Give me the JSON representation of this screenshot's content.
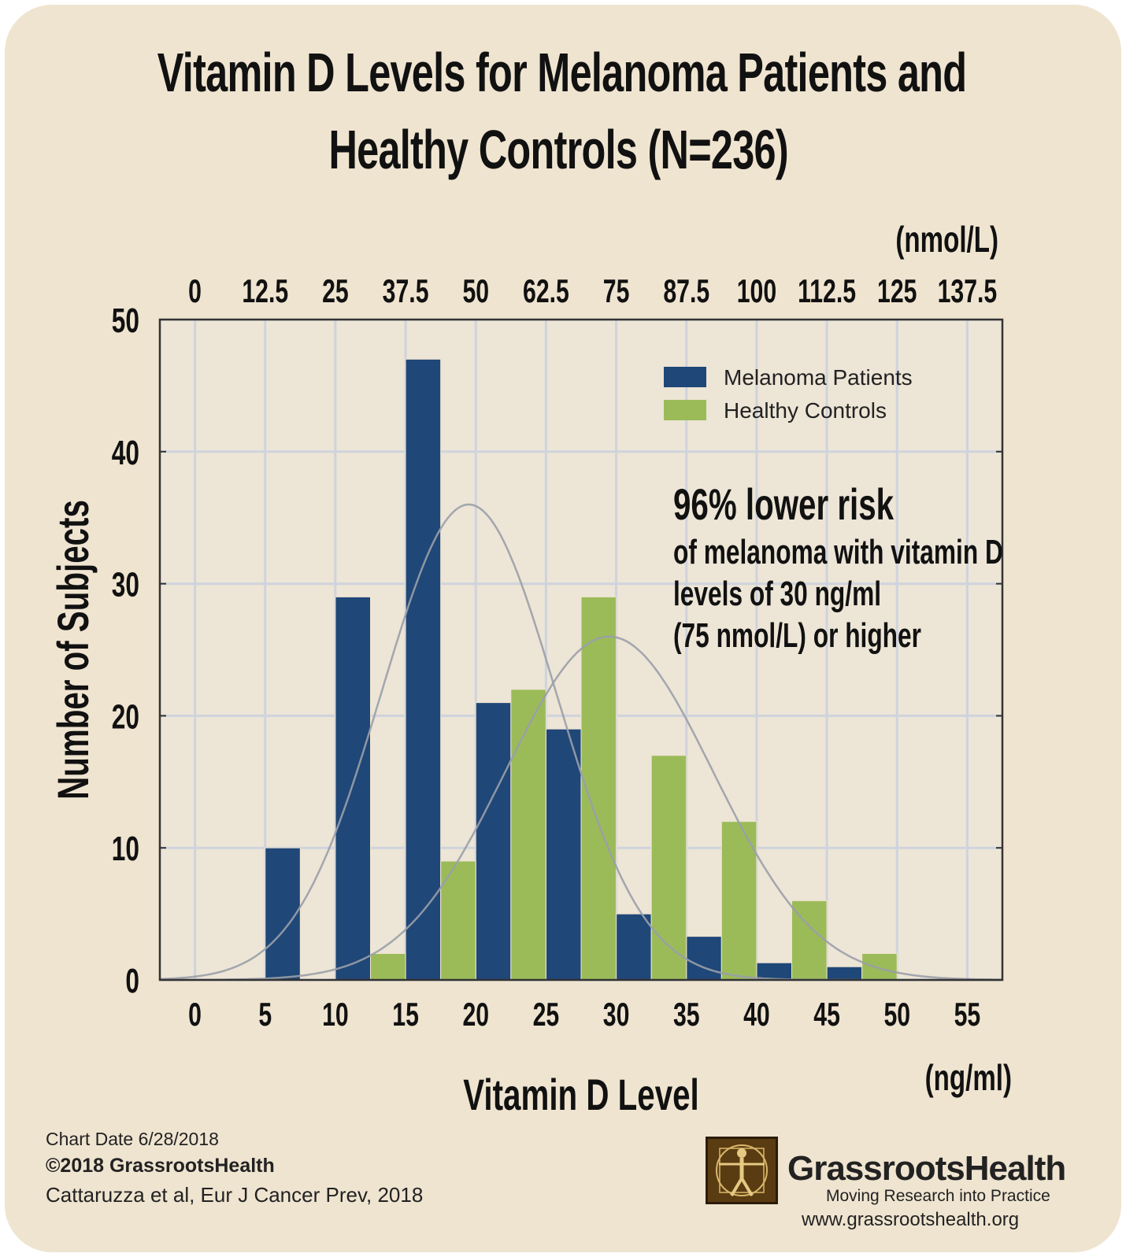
{
  "title_line1": "Vitamin D Levels for Melanoma Patients and",
  "title_line2": "Healthy Controls (N=236)",
  "chart_data": {
    "type": "bar",
    "title": "Vitamin D Levels for Melanoma Patients and Healthy Controls (N=236)",
    "xlabel": "Vitamin D Level",
    "x_unit": "(ng/ml)",
    "x2_unit": "(nmol/L)",
    "ylabel": "Number of Subjects",
    "x_ticks": [
      0,
      5,
      10,
      15,
      20,
      25,
      30,
      35,
      40,
      45,
      50,
      55
    ],
    "x2_ticks": [
      "0",
      "12.5",
      "25",
      "37.5",
      "50",
      "62.5",
      "75",
      "87.5",
      "100",
      "112.5",
      "125",
      "137.5"
    ],
    "y_ticks": [
      0,
      10,
      20,
      30,
      40,
      50
    ],
    "xlim": [
      -2.5,
      57.5
    ],
    "ylim": [
      0,
      50
    ],
    "grid": true,
    "legend_position": "top-right",
    "bin_edges": [
      5,
      10,
      15,
      20,
      25,
      30,
      35,
      40,
      45,
      50
    ],
    "series": [
      {
        "name": "Melanoma Patients",
        "color": "#1f4778",
        "bins": [
          [
            5,
            10
          ],
          [
            10,
            15
          ],
          [
            15,
            20
          ],
          [
            20,
            25
          ],
          [
            25,
            30
          ],
          [
            30,
            35
          ],
          [
            35,
            40
          ],
          [
            40,
            45
          ],
          [
            45,
            50
          ]
        ],
        "values": [
          10,
          29,
          47,
          21,
          19,
          5,
          3.3,
          1.3,
          1
        ]
      },
      {
        "name": "Healthy Controls",
        "color": "#9bbb59",
        "bins": [
          [
            10,
            15
          ],
          [
            15,
            20
          ],
          [
            20,
            25
          ],
          [
            25,
            30
          ],
          [
            30,
            35
          ],
          [
            35,
            40
          ],
          [
            40,
            45
          ],
          [
            45,
            50
          ]
        ],
        "values": [
          2,
          9,
          22,
          29,
          17,
          12,
          6,
          2
        ]
      }
    ],
    "fit_curves": [
      {
        "series": "Melanoma Patients",
        "mean": 19.5,
        "sd": 6.2,
        "peak": 36
      },
      {
        "series": "Healthy Controls",
        "mean": 29.5,
        "sd": 7.4,
        "peak": 26
      }
    ],
    "annotation": {
      "headline": "96% lower risk",
      "lines": [
        "of melanoma with vitamin D",
        "levels of 30 ng/ml",
        "(75 nmol/L) or higher"
      ]
    }
  },
  "footer": {
    "date": "Chart Date 6/28/2018",
    "copyright": "©2018 GrassrootsHealth",
    "citation": "Cattaruzza et al, Eur J Cancer Prev, 2018"
  },
  "brand": {
    "name": "GrassrootsHealth",
    "tagline": "Moving Research into Practice",
    "url": "www.grassrootshealth.org"
  }
}
